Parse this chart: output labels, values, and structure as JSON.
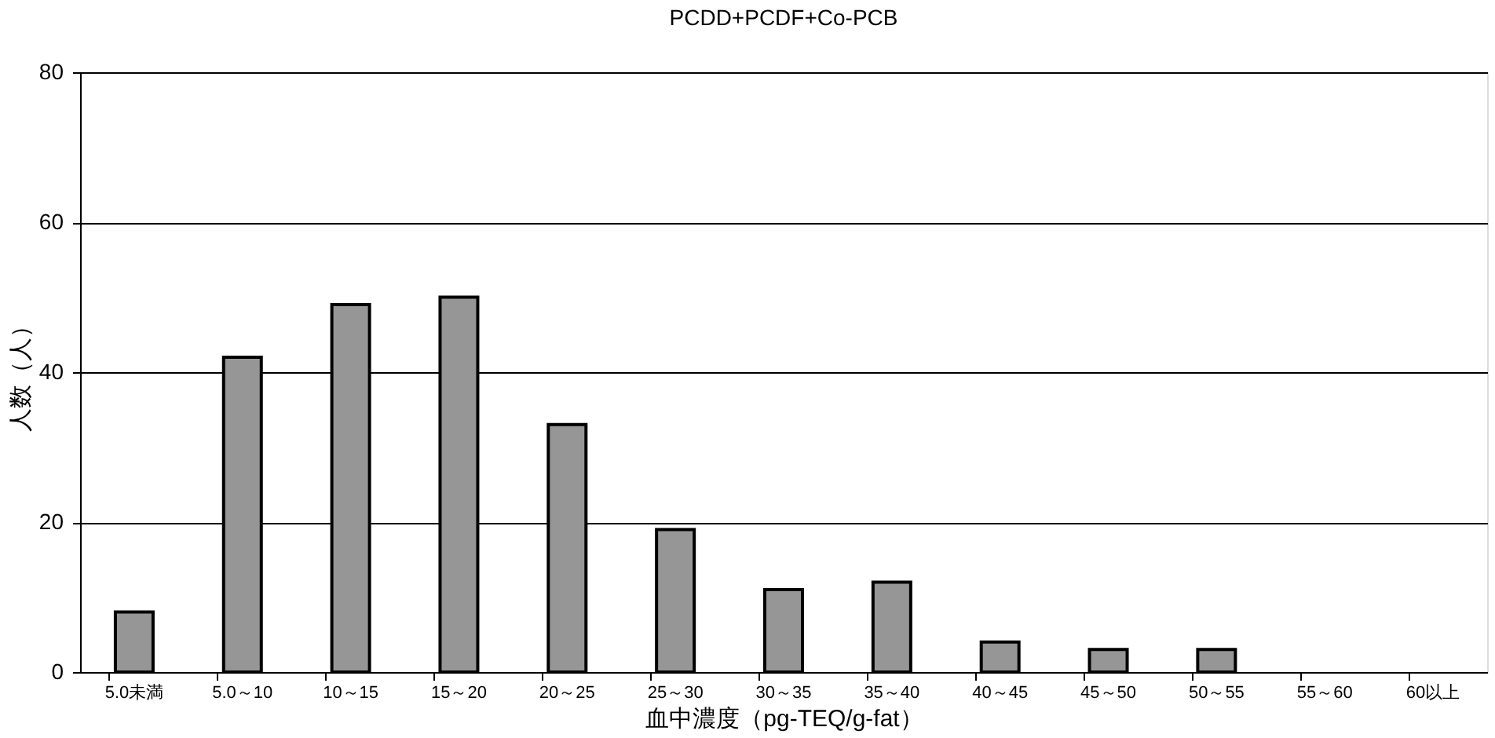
{
  "chart_data": {
    "type": "bar",
    "title": "PCDD+PCDF+Co-PCB",
    "xlabel": "血中濃度（pg-TEQ/g-fat）",
    "ylabel": "人数（人）",
    "categories": [
      "5.0未満",
      "5.0～10",
      "10～15",
      "15～20",
      "20～25",
      "25～30",
      "30～35",
      "35～40",
      "40～45",
      "45～50",
      "50～55",
      "55～60",
      "60以上"
    ],
    "values": [
      8,
      42,
      49,
      50,
      33,
      19,
      11,
      12,
      4,
      3,
      3,
      0,
      0
    ],
    "color": "#969696",
    "ylim": [
      0,
      80
    ],
    "yticks": [
      0,
      20,
      40,
      60,
      80
    ],
    "grid": "y"
  }
}
